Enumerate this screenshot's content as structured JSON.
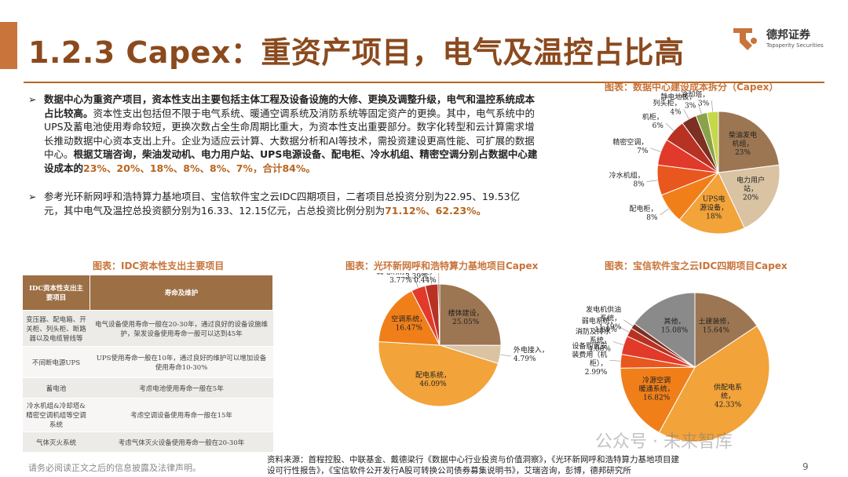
{
  "header": {
    "title": "1.2.3 Capex：重资产项目，电气及温控占比高",
    "brand_name": "德邦证券",
    "brand_en": "Topsperity Securities"
  },
  "bullets": [
    {
      "bold_lead": "数据中心为重资产项目，资本性支出主要包括主体工程及设备设施的大修、更换及调整升级，电气和温控系统成本占比较高。",
      "body": "资本性支出包括但不限于电气系统、暖通空调系统及消防系统等固定资产的更换。其中，电气系统中的UPS及蓄电池使用寿命较短，更换次数占全生命周期比重大，为资本性支出重要部分。数字化转型和云计算需求增长推动数据中心资本支出上升。企业为适应云计算、大数据分析和AI等技术，需投资建设更高性能、可扩展的数据中心。",
      "bold_tail": "根据艾瑞咨询，柴油发动机、电力用户站、UPS电源设备、配电柜、冷水机组、精密空调分别占数据中心建设成本的",
      "pct_tail": "23%、20%、18%、8%、8%、7%，合计84%。"
    },
    {
      "body": "参考光环新网呼和浩特算力基地项目、宝信软件宝之云IDC四期项目，二者项目总投资分别为22.95、19.53亿元，其中电气及温控总投资额分别为16.33、12.15亿元，占总投资比例分别为",
      "pct_tail": "71.12%、62.23%。"
    }
  ],
  "figures": {
    "fig1_title": "图表：数据中心建设成本拆分（Capex）",
    "fig2_title": "图表：IDC资本性支出主要项目",
    "fig3_title": "图表：光环新网呼和浩特算力基地项目Capex",
    "fig4_title": "图表：宝信软件宝之云IDC四期项目Capex"
  },
  "table": {
    "headers": [
      "IDC资本性支出主要项目",
      "寿命及维护"
    ],
    "rows": [
      [
        "变压器、配电箱、开关柜、列头柜、断路器以及电缆管线等",
        "电气设备使用寿命一般在20-30年，通过良好的设备设施维护，架发设备使用寿命一般可以达到45年"
      ],
      [
        "不间断电源UPS",
        "UPS使用寿命一般在10年，通过良好的维护可以增加设备使用寿命10-30%"
      ],
      [
        "蓄电池",
        "考虑电池使用寿命一般在5年"
      ],
      [
        "冷水机组&冷却塔&精密空调机组等空调系统",
        "考虑空调设备使用寿命一般在15年"
      ],
      [
        "气体灭火系统",
        "考虑气体灭火设备使用寿命一般在20-30年"
      ]
    ]
  },
  "chart_data": [
    {
      "type": "pie",
      "title": "图表：数据中心建设成本拆分（Capex）",
      "slices": [
        {
          "label": "柴油发电机组",
          "value": 23,
          "display": "23%",
          "color": "#9c7652"
        },
        {
          "label": "电力用户站",
          "value": 20,
          "display": "20%",
          "color": "#d9c3a3"
        },
        {
          "label": "UPS电源设备",
          "value": 18,
          "display": "18%",
          "color": "#f2a33a"
        },
        {
          "label": "配电柜",
          "value": 8,
          "display": "8%",
          "color": "#f07f1a"
        },
        {
          "label": "冷水机组",
          "value": 8,
          "display": "8%",
          "color": "#e8571e"
        },
        {
          "label": "精密空调",
          "value": 7,
          "display": "7%",
          "color": "#e23a2a"
        },
        {
          "label": "机柜",
          "value": 6,
          "display": "6%",
          "color": "#b83224"
        },
        {
          "label": "列头柜",
          "value": 4,
          "display": "4%",
          "color": "#7d3022"
        },
        {
          "label": "静电地板",
          "value": 3,
          "display": "3%",
          "color": "#8aa24a"
        },
        {
          "label": "冷却塔",
          "value": 3,
          "display": "3%",
          "color": "#c6d84a"
        }
      ]
    },
    {
      "type": "pie",
      "title": "图表：光环新网呼和浩特算力基地项目Capex",
      "slices": [
        {
          "label": "楼体建设",
          "value": 25.05,
          "display": "25.05%",
          "color": "#9c7652"
        },
        {
          "label": "外电接入",
          "value": 4.79,
          "display": "4.79%",
          "color": "#d9c3a3"
        },
        {
          "label": "配电系统",
          "value": 46.09,
          "display": "46.09%",
          "color": "#f2a33a"
        },
        {
          "label": "空调系统",
          "value": 16.47,
          "display": "16.47%",
          "color": "#f07f1a"
        },
        {
          "label": "弱电消防",
          "value": 3.77,
          "display": "3.77%",
          "color": "#e23a2a"
        },
        {
          "label": "机房配套",
          "value": 3.39,
          "display": "3.39%",
          "color": "#b83224"
        },
        {
          "label": "铺底流动资金",
          "value": 0.44,
          "display": "0.44%",
          "color": "#7d3022"
        }
      ]
    },
    {
      "type": "pie",
      "title": "图表：宝信软件宝之云IDC四期项目Capex",
      "slices": [
        {
          "label": "土建装修",
          "value": 15.64,
          "display": "15.64%",
          "color": "#9c7652"
        },
        {
          "label": "供配电系统",
          "value": 42.33,
          "display": "42.33%",
          "color": "#f2a33a"
        },
        {
          "label": "冷源空调暖通系统",
          "value": 16.82,
          "display": "16.82%",
          "color": "#f07f1a"
        },
        {
          "label": "设备购置安装费用（机柜）",
          "value": 2.99,
          "display": "2.99%",
          "color": "#e8571e"
        },
        {
          "label": "消防及排水系统",
          "value": 4.06,
          "display": "4.06%",
          "color": "#e23a2a"
        },
        {
          "label": "弱电系统",
          "value": 1.89,
          "display": "1.89%",
          "color": "#b83224"
        },
        {
          "label": "发电机供油系统",
          "value": 1.19,
          "display": "1.19%",
          "color": "#7d3022"
        },
        {
          "label": "其他",
          "value": 15.08,
          "display": "15.08%",
          "color": "#8a8a8a"
        }
      ]
    }
  ],
  "footer": {
    "disclaimer": "请务必阅读正文之后的信息披露及法律声明。",
    "source_line1": "资料来源：首程控股、中联基金、戴德梁行《数据中心行业投资与价值洞察》，《光环新网呼和浩特算力基地项目建",
    "source_line2": "设可行性报告》，《宝信软件公开发行A股可转换公司债券募集说明书》，艾瑞咨询，彭博，德邦研究所",
    "page": "9",
    "watermark": "公众号 · 未来智库"
  }
}
